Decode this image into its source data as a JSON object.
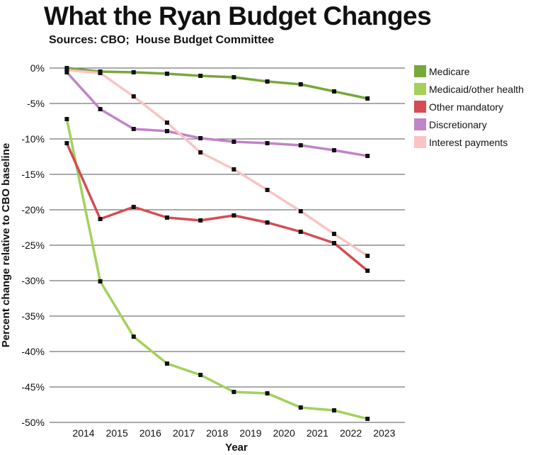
{
  "title": "What the Ryan Budget Changes",
  "subtitle": "Sources: CBO;  House Budget Committee",
  "chart_data": {
    "type": "line",
    "xlabel": "Year",
    "ylabel": "Percent change relative to CBO baseline",
    "ylim": [
      -50,
      0
    ],
    "yticks": [
      "0%",
      "-5%",
      "-10%",
      "-15%",
      "-20%",
      "-25%",
      "-30%",
      "-35%",
      "-40%",
      "-45%",
      "-50%"
    ],
    "categories": [
      "2014",
      "2015",
      "2016",
      "2017",
      "2018",
      "2019",
      "2020",
      "2021",
      "2022",
      "2023"
    ],
    "grid": true,
    "legend_position": "right",
    "series": [
      {
        "name": "Medicare",
        "color": "#77a83a",
        "points": [
          [
            2013.5,
            0
          ],
          [
            2014.5,
            -0.5
          ],
          [
            2015.5,
            -0.6
          ],
          [
            2016.5,
            -0.8
          ],
          [
            2017.5,
            -1.1
          ],
          [
            2018.5,
            -1.3
          ],
          [
            2019.5,
            -1.9
          ],
          [
            2020.5,
            -2.3
          ],
          [
            2021.5,
            -3.3
          ],
          [
            2022.5,
            -4.3
          ]
        ]
      },
      {
        "name": "Medicaid/other health",
        "color": "#a3d15c",
        "points": [
          [
            2013.5,
            -7.2
          ],
          [
            2014.5,
            -30.1
          ],
          [
            2015.5,
            -37.9
          ],
          [
            2016.5,
            -41.7
          ],
          [
            2017.5,
            -43.3
          ],
          [
            2018.5,
            -45.7
          ],
          [
            2019.5,
            -45.9
          ],
          [
            2020.5,
            -47.9
          ],
          [
            2021.5,
            -48.3
          ],
          [
            2022.5,
            -49.5
          ]
        ]
      },
      {
        "name": "Other mandatory",
        "color": "#d44d52",
        "points": [
          [
            2013.5,
            -10.6
          ],
          [
            2014.5,
            -21.3
          ],
          [
            2015.5,
            -19.6
          ],
          [
            2016.5,
            -21.1
          ],
          [
            2017.5,
            -21.5
          ],
          [
            2018.5,
            -20.8
          ],
          [
            2019.5,
            -21.8
          ],
          [
            2020.5,
            -23.1
          ],
          [
            2021.5,
            -24.7
          ],
          [
            2022.5,
            -28.6
          ]
        ]
      },
      {
        "name": "Discretionary",
        "color": "#c183c9",
        "points": [
          [
            2013.5,
            -0.6
          ],
          [
            2014.5,
            -5.8
          ],
          [
            2015.5,
            -8.6
          ],
          [
            2016.5,
            -8.9
          ],
          [
            2017.5,
            -9.9
          ],
          [
            2018.5,
            -10.4
          ],
          [
            2019.5,
            -10.6
          ],
          [
            2020.5,
            -10.9
          ],
          [
            2021.5,
            -11.6
          ],
          [
            2022.5,
            -12.4
          ]
        ]
      },
      {
        "name": "Interest payments",
        "color": "#f9c4c4",
        "points": [
          [
            2013.5,
            -0.3
          ],
          [
            2014.5,
            -0.7
          ],
          [
            2015.5,
            -4.0
          ],
          [
            2016.5,
            -7.7
          ],
          [
            2017.5,
            -11.9
          ],
          [
            2018.5,
            -14.3
          ],
          [
            2019.5,
            -17.2
          ],
          [
            2020.5,
            -20.2
          ],
          [
            2021.5,
            -23.4
          ],
          [
            2022.5,
            -26.5
          ]
        ]
      }
    ]
  }
}
